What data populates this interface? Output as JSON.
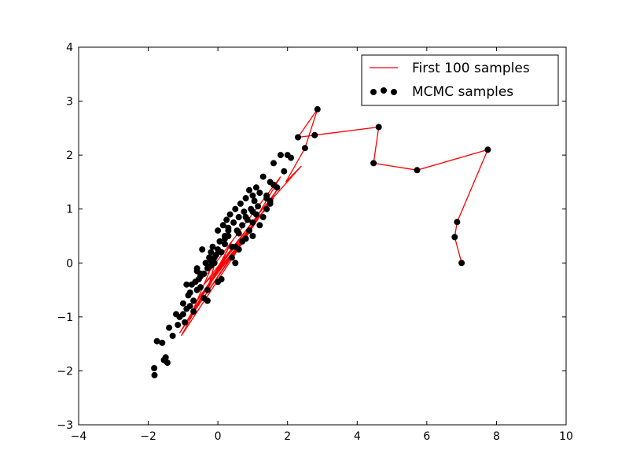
{
  "chart_data": {
    "type": "scatter",
    "title": "",
    "xlabel": "",
    "ylabel": "",
    "xlim": [
      -4,
      10
    ],
    "ylim": [
      -3,
      4
    ],
    "xticks": [
      "−4",
      "−2",
      "0",
      "2",
      "4",
      "6",
      "8",
      "10"
    ],
    "yticks": [
      "−3",
      "−2",
      "−1",
      "0",
      "1",
      "2",
      "3",
      "4"
    ],
    "grid": false,
    "legend_position": "top-right",
    "legend": [
      "First 100 samples",
      "MCMC samples"
    ],
    "colors": {
      "chain": "#ff0000",
      "samples": "#000000"
    },
    "series": [
      {
        "name": "First 100 samples",
        "type": "line",
        "x": [
          7.0,
          6.8,
          6.87,
          7.75,
          5.72,
          4.47,
          4.62,
          2.78,
          2.3,
          2.86,
          2.5,
          1.95,
          2.4,
          1.3,
          1.75,
          -1.05,
          0.4,
          -0.3,
          0.0,
          -0.8,
          0.2,
          -1.1,
          1.2,
          0.5,
          -0.2,
          0.8,
          -0.6,
          0.3,
          0.9,
          -0.5,
          1.6,
          0.0,
          -0.9,
          0.6,
          -0.4,
          1.4,
          0.1,
          -1.0,
          0.7,
          1.8,
          -0.3
        ],
        "y": [
          0.0,
          0.48,
          0.76,
          2.1,
          1.72,
          1.85,
          2.52,
          2.37,
          2.33,
          2.85,
          2.13,
          1.5,
          1.8,
          1.0,
          1.4,
          -1.35,
          0.4,
          -0.5,
          0.2,
          -1.0,
          0.1,
          -1.3,
          0.9,
          0.2,
          -0.3,
          0.5,
          -0.7,
          0.15,
          0.6,
          -0.6,
          1.2,
          -0.1,
          -1.1,
          0.3,
          -0.4,
          1.1,
          0.0,
          -1.2,
          0.4,
          1.6,
          -0.2
        ]
      },
      {
        "name": "MCMC samples",
        "type": "scatter",
        "x": [
          7.0,
          6.8,
          6.87,
          7.75,
          5.72,
          4.47,
          4.62,
          2.78,
          2.3,
          2.86,
          2.5,
          -1.82,
          -1.83,
          -1.75,
          -1.6,
          -1.55,
          -1.45,
          -1.5,
          -1.4,
          -1.3,
          -1.15,
          -1.1,
          -1.0,
          -0.95,
          -0.9,
          -0.85,
          -0.8,
          -0.75,
          -0.7,
          -0.65,
          -0.6,
          -0.55,
          -0.5,
          -0.45,
          -0.4,
          -0.35,
          -0.3,
          -0.25,
          -0.2,
          -0.15,
          -0.1,
          -0.05,
          0.0,
          0.05,
          0.1,
          0.15,
          0.2,
          0.25,
          0.3,
          0.35,
          0.4,
          0.45,
          0.5,
          0.55,
          0.6,
          0.65,
          0.7,
          0.75,
          0.8,
          0.85,
          0.9,
          0.95,
          1.0,
          1.05,
          1.1,
          1.15,
          1.2,
          1.3,
          1.4,
          1.5,
          1.6,
          1.7,
          1.8,
          1.9,
          2.0,
          2.1,
          -0.9,
          -0.7,
          -0.5,
          -0.3,
          -0.1,
          0.1,
          0.3,
          0.5,
          0.7,
          0.9,
          1.1,
          1.3,
          1.5,
          -0.8,
          -0.6,
          -0.4,
          -0.2,
          0.0,
          0.2,
          0.4,
          0.6,
          0.8,
          1.0,
          1.2,
          1.4,
          1.6,
          -1.2,
          -1.0,
          -0.6,
          -0.2,
          0.2,
          0.6,
          1.0,
          1.4,
          -0.5,
          0.0,
          0.5,
          1.0,
          1.5,
          0.3,
          0.8,
          -0.3
        ],
        "y": [
          0.0,
          0.48,
          0.76,
          2.1,
          1.72,
          1.85,
          2.52,
          2.37,
          2.33,
          2.85,
          2.13,
          -2.08,
          -1.95,
          -1.45,
          -1.48,
          -1.8,
          -1.85,
          -1.75,
          -1.2,
          -1.35,
          -1.15,
          -1.0,
          -0.95,
          -1.1,
          -0.85,
          -0.6,
          -0.8,
          -0.4,
          -0.7,
          -0.35,
          -0.5,
          -0.3,
          -0.45,
          0.25,
          -0.2,
          0.0,
          -0.1,
          0.1,
          0.2,
          0.3,
          0.0,
          0.15,
          0.6,
          0.4,
          0.2,
          0.7,
          0.5,
          0.8,
          0.65,
          0.9,
          0.3,
          0.75,
          1.0,
          0.6,
          0.85,
          1.1,
          0.7,
          0.95,
          1.2,
          0.8,
          1.35,
          1.0,
          1.25,
          1.15,
          1.4,
          1.05,
          1.3,
          1.6,
          1.2,
          1.5,
          1.85,
          1.4,
          2.0,
          1.7,
          2.0,
          1.95,
          -0.4,
          -0.9,
          -0.2,
          -0.7,
          0.1,
          -0.3,
          0.5,
          0.0,
          0.4,
          0.6,
          0.9,
          0.85,
          1.1,
          -0.55,
          -0.15,
          -0.65,
          0.05,
          -0.35,
          0.35,
          0.1,
          0.55,
          0.45,
          0.95,
          0.7,
          1.25,
          1.45,
          -0.95,
          -0.75,
          -0.1,
          -0.05,
          0.45,
          0.25,
          0.5,
          1.0,
          -0.25,
          0.25,
          0.3,
          0.75,
          1.15,
          0.6,
          0.85,
          -0.5
        ]
      }
    ]
  }
}
